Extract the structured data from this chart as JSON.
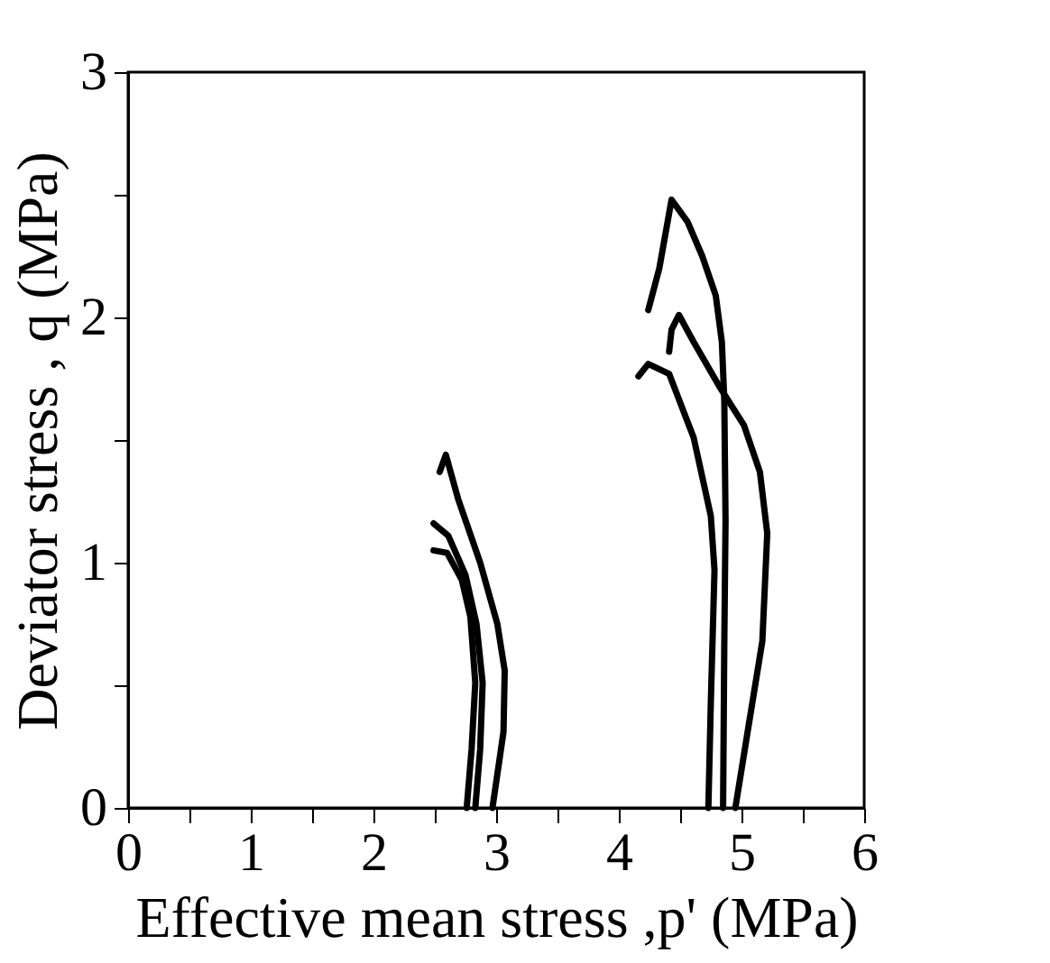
{
  "chart_data": {
    "type": "line",
    "xlabel": "Effective mean stress ,p'  (MPa)",
    "ylabel": "Deviator stress , q (MPa)",
    "xlim": [
      0,
      6
    ],
    "ylim": [
      0,
      3
    ],
    "xticks": [
      0,
      {
        "value": 0.5,
        "label": null
      },
      1,
      {
        "value": 1.5,
        "label": null
      },
      2,
      {
        "value": 2.5,
        "label": null
      },
      3,
      {
        "value": 3.5,
        "label": null
      },
      4,
      {
        "value": 4.5,
        "label": null
      },
      5,
      {
        "value": 5.5,
        "label": null
      },
      6
    ],
    "yticks": [
      0,
      {
        "value": 0.5,
        "label": null
      },
      1,
      {
        "value": 1.5,
        "label": null
      },
      2,
      {
        "value": 2.5,
        "label": null
      },
      3
    ],
    "grid": false,
    "legend": false,
    "marker": "none",
    "line_style": "solid",
    "series": [
      {
        "color": "#000000",
        "x": [
          2.54,
          2.59,
          2.69,
          2.87,
          3.01,
          3.07,
          3.06,
          2.97
        ],
        "values": [
          1.37,
          1.44,
          1.26,
          1.0,
          0.75,
          0.56,
          0.31,
          0.0
        ]
      },
      {
        "color": "#000000",
        "x": [
          2.49,
          2.61,
          2.75,
          2.84,
          2.89,
          2.87,
          2.83
        ],
        "values": [
          1.16,
          1.11,
          0.95,
          0.75,
          0.51,
          0.24,
          0.0
        ]
      },
      {
        "color": "#000000",
        "x": [
          2.49,
          2.6,
          2.72,
          2.79,
          2.83,
          2.8,
          2.76
        ],
        "values": [
          1.05,
          1.04,
          0.93,
          0.78,
          0.51,
          0.24,
          0.0
        ]
      },
      {
        "color": "#000000",
        "x": [
          4.24,
          4.33,
          4.43,
          4.56,
          4.68,
          4.79,
          4.84,
          4.86,
          4.87,
          4.86,
          4.85
        ],
        "values": [
          2.03,
          2.2,
          2.48,
          2.39,
          2.25,
          2.09,
          1.9,
          1.66,
          1.17,
          0.68,
          0.0
        ]
      },
      {
        "color": "#000000",
        "x": [
          4.41,
          4.43,
          4.49,
          4.61,
          4.83,
          5.02,
          5.15,
          5.21,
          5.17,
          5.05,
          4.95
        ],
        "values": [
          1.86,
          1.95,
          2.01,
          1.9,
          1.71,
          1.56,
          1.37,
          1.12,
          0.68,
          0.31,
          0.0
        ]
      },
      {
        "color": "#000000",
        "x": [
          4.16,
          4.24,
          4.41,
          4.61,
          4.75,
          4.78,
          4.75,
          4.73
        ],
        "values": [
          1.76,
          1.81,
          1.77,
          1.51,
          1.19,
          0.97,
          0.43,
          0.0
        ]
      }
    ]
  }
}
